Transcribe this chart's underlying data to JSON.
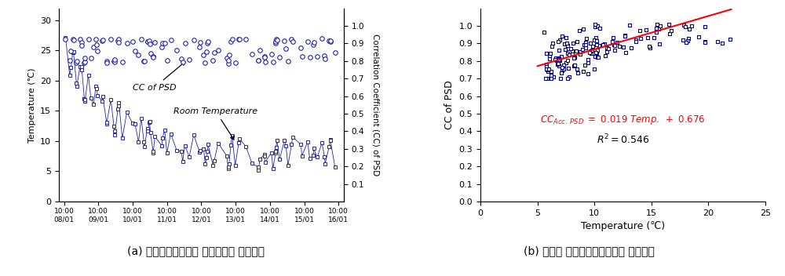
{
  "left_panel": {
    "temp_label": "Temperature (℃)",
    "cc_label": "Correlation Coefficient (CC) of PSD",
    "xlabel_ticks": [
      "10:00\n08/01",
      "10:00\n09/01",
      "10:00\n10/01",
      "10:00\n11/01",
      "10:00\n12/01",
      "10:00\n13/01",
      "10:00\n14/01",
      "10:00\n15/01",
      "10:00\n16/01"
    ],
    "temp_ylim": [
      0,
      32
    ],
    "cc_ylim": [
      0,
      1.1
    ],
    "cc_yticks": [
      0.1,
      0.2,
      0.3,
      0.4,
      0.5,
      0.6,
      0.7,
      0.8,
      0.9,
      1.0
    ],
    "temp_yticks": [
      0,
      5,
      10,
      15,
      20,
      25,
      30
    ],
    "marker_color": "#2222AA",
    "annotation_cc": "CC of PSD",
    "annotation_temp": "Room Temperature",
    "caption": "(a) 파위스펙트럼밀도 상관계수의 시간이력"
  },
  "right_panel": {
    "xlabel": "Temperature (℃)",
    "ylabel": "CC of PSD",
    "xlim": [
      0,
      25
    ],
    "ylim": [
      0,
      1.1
    ],
    "yticks": [
      0,
      0.1,
      0.2,
      0.3,
      0.4,
      0.5,
      0.6,
      0.7,
      0.8,
      0.9,
      1.0
    ],
    "xticks": [
      0,
      5,
      10,
      15,
      20,
      25
    ],
    "marker_color": "#00008B",
    "line_color": "#FF0000",
    "slope": 0.019,
    "intercept": 0.676,
    "caption": "(b) 온도와 파위스펙트럼밀도의 선형관계"
  }
}
